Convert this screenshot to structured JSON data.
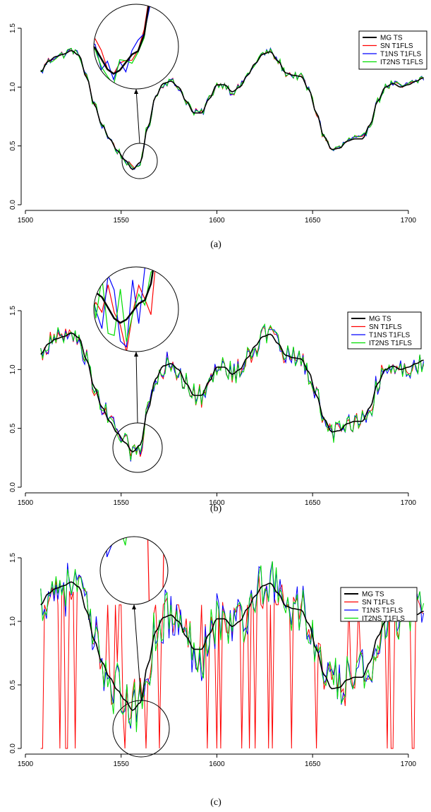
{
  "chart_data": [
    {
      "type": "line",
      "caption": "(a)",
      "xlim": [
        1500,
        1710
      ],
      "ylim": [
        0.0,
        1.5
      ],
      "xticks": [
        1500,
        1550,
        1600,
        1650,
        1700
      ],
      "yticks": [
        "0.0",
        "0.5",
        "1.0",
        "1.5"
      ],
      "legend_position": "top-right",
      "legend_entries": [
        "MG TS",
        "SN T1FLS",
        "T1NS T1FLS",
        "IT2NS T1FLS"
      ],
      "noise_amplitude": 0.03,
      "series": [
        {
          "name": "MG TS",
          "color": "#000000"
        },
        {
          "name": "SN T1FLS",
          "color": "#ff0000"
        },
        {
          "name": "T1NS T1FLS",
          "color": "#0000ff"
        },
        {
          "name": "IT2NS T1FLS",
          "color": "#00dd00"
        }
      ],
      "zoom_center": [
        1555,
        0.34
      ]
    },
    {
      "type": "line",
      "caption": "(b)",
      "xlim": [
        1500,
        1710
      ],
      "ylim": [
        0.0,
        1.5
      ],
      "xticks": [
        1500,
        1550,
        1600,
        1650,
        1700
      ],
      "yticks": [
        "0.0",
        "0.5",
        "1.0",
        "1.5"
      ],
      "legend_position": "top-right",
      "legend_entries": [
        "MG TS",
        "SN T1FLS",
        "T1NS T1FLS",
        "IT2NS T1FLS"
      ],
      "noise_amplitude": 0.09,
      "series": [
        {
          "name": "MG TS",
          "color": "#000000"
        },
        {
          "name": "SN T1FLS",
          "color": "#ff0000"
        },
        {
          "name": "T1NS T1FLS",
          "color": "#0000ff"
        },
        {
          "name": "IT2NS T1FLS",
          "color": "#00dd00"
        }
      ],
      "zoom_center": [
        1555,
        0.3
      ]
    },
    {
      "type": "line",
      "caption": "(c)",
      "xlim": [
        1500,
        1710
      ],
      "ylim": [
        0.0,
        1.5
      ],
      "xticks": [
        1500,
        1550,
        1600,
        1650,
        1700
      ],
      "yticks": [
        "0.0",
        "0.5",
        "1.0",
        "1.5"
      ],
      "legend_position": "top-right",
      "legend_entries": [
        "MG TS",
        "SN T1FLS",
        "T1NS T1FLS",
        "IT2NS T1FLS"
      ],
      "noise_amplitude": 0.2,
      "series": [
        {
          "name": "MG TS",
          "color": "#000000"
        },
        {
          "name": "SN T1FLS",
          "color": "#ff0000"
        },
        {
          "name": "T1NS T1FLS",
          "color": "#0000ff"
        },
        {
          "name": "IT2NS T1FLS",
          "color": "#00dd00"
        }
      ],
      "zoom_center": [
        1556,
        0.3
      ]
    }
  ],
  "mg_ts": {
    "x": [
      1508,
      1512,
      1516,
      1520,
      1524,
      1528,
      1532,
      1536,
      1540,
      1544,
      1548,
      1552,
      1556,
      1560,
      1564,
      1568,
      1572,
      1576,
      1580,
      1584,
      1588,
      1592,
      1596,
      1600,
      1604,
      1608,
      1612,
      1616,
      1620,
      1624,
      1628,
      1632,
      1636,
      1640,
      1644,
      1648,
      1652,
      1656,
      1660,
      1664,
      1668,
      1672,
      1676,
      1680,
      1684,
      1688,
      1692,
      1696,
      1700,
      1704,
      1708
    ],
    "y": [
      1.13,
      1.22,
      1.26,
      1.28,
      1.31,
      1.27,
      1.08,
      0.85,
      0.68,
      0.56,
      0.46,
      0.38,
      0.3,
      0.36,
      0.66,
      0.92,
      1.03,
      1.05,
      1.0,
      0.88,
      0.78,
      0.78,
      0.9,
      1.02,
      1.02,
      0.96,
      1.0,
      1.1,
      1.2,
      1.28,
      1.3,
      1.22,
      1.12,
      1.1,
      1.09,
      0.98,
      0.78,
      0.58,
      0.47,
      0.48,
      0.54,
      0.56,
      0.56,
      0.68,
      0.88,
      1.0,
      1.03,
      1.0,
      1.02,
      1.05,
      1.08
    ]
  }
}
